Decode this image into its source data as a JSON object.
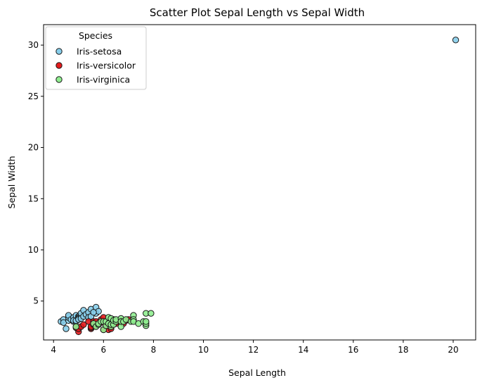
{
  "chart_data": {
    "type": "scatter",
    "title": "Scatter Plot Sepal Length vs Sepal Width",
    "xlabel": "Sepal Length",
    "ylabel": "Sepal Width",
    "xlim": [
      3.6,
      20.9
    ],
    "ylim": [
      1.2,
      32.0
    ],
    "xticks": [
      4,
      6,
      8,
      10,
      12,
      14,
      16,
      18,
      20
    ],
    "yticks": [
      5,
      10,
      15,
      20,
      25,
      30
    ],
    "grid": false,
    "legend": {
      "title": "Species",
      "placement": "top-left"
    },
    "series": [
      {
        "name": "Iris-setosa",
        "color": "#87ceeb",
        "points": [
          [
            4.3,
            3.0
          ],
          [
            4.4,
            3.2
          ],
          [
            4.4,
            2.9
          ],
          [
            4.5,
            2.3
          ],
          [
            4.6,
            3.1
          ],
          [
            4.6,
            3.4
          ],
          [
            4.6,
            3.6
          ],
          [
            4.7,
            3.2
          ],
          [
            4.8,
            3.0
          ],
          [
            4.8,
            3.4
          ],
          [
            4.8,
            3.1
          ],
          [
            4.9,
            3.0
          ],
          [
            4.9,
            3.1
          ],
          [
            4.9,
            3.6
          ],
          [
            5.0,
            3.5
          ],
          [
            5.0,
            3.4
          ],
          [
            5.0,
            3.3
          ],
          [
            5.0,
            3.2
          ],
          [
            5.1,
            3.5
          ],
          [
            5.1,
            3.8
          ],
          [
            5.1,
            3.3
          ],
          [
            5.2,
            3.5
          ],
          [
            5.2,
            4.1
          ],
          [
            5.3,
            3.7
          ],
          [
            5.4,
            3.9
          ],
          [
            5.4,
            3.4
          ],
          [
            5.5,
            4.2
          ],
          [
            5.5,
            3.5
          ],
          [
            5.7,
            4.4
          ],
          [
            5.7,
            3.8
          ],
          [
            5.8,
            4.0
          ],
          [
            5.6,
            3.9
          ],
          [
            20.1,
            30.5
          ]
        ]
      },
      {
        "name": "Iris-versicolor",
        "color": "#e41a1c",
        "points": [
          [
            4.9,
            2.4
          ],
          [
            5.0,
            2.0
          ],
          [
            5.0,
            2.3
          ],
          [
            5.1,
            2.5
          ],
          [
            5.2,
            2.7
          ],
          [
            5.4,
            3.0
          ],
          [
            5.5,
            2.3
          ],
          [
            5.5,
            2.4
          ],
          [
            5.5,
            2.5
          ],
          [
            5.6,
            2.9
          ],
          [
            5.6,
            3.0
          ],
          [
            5.6,
            2.7
          ],
          [
            5.7,
            2.8
          ],
          [
            5.7,
            2.6
          ],
          [
            5.7,
            3.0
          ],
          [
            5.8,
            2.7
          ],
          [
            5.9,
            3.0
          ],
          [
            5.9,
            3.2
          ],
          [
            6.0,
            2.2
          ],
          [
            6.0,
            2.9
          ],
          [
            6.0,
            3.4
          ],
          [
            6.1,
            2.8
          ],
          [
            6.1,
            3.0
          ],
          [
            6.2,
            2.2
          ],
          [
            6.2,
            2.9
          ],
          [
            6.3,
            2.3
          ],
          [
            6.3,
            2.5
          ],
          [
            6.4,
            3.2
          ],
          [
            6.5,
            2.8
          ],
          [
            6.6,
            3.0
          ],
          [
            6.7,
            3.1
          ],
          [
            6.8,
            2.8
          ],
          [
            6.9,
            3.1
          ],
          [
            7.0,
            3.2
          ]
        ]
      },
      {
        "name": "Iris-virginica",
        "color": "#90ee90",
        "points": [
          [
            4.9,
            2.5
          ],
          [
            5.6,
            2.8
          ],
          [
            5.7,
            2.5
          ],
          [
            5.8,
            2.7
          ],
          [
            5.8,
            2.8
          ],
          [
            5.9,
            3.0
          ],
          [
            6.0,
            2.2
          ],
          [
            6.0,
            3.0
          ],
          [
            6.1,
            2.6
          ],
          [
            6.1,
            3.0
          ],
          [
            6.2,
            2.8
          ],
          [
            6.2,
            3.4
          ],
          [
            6.3,
            2.5
          ],
          [
            6.3,
            2.7
          ],
          [
            6.3,
            3.3
          ],
          [
            6.4,
            2.7
          ],
          [
            6.4,
            3.1
          ],
          [
            6.5,
            3.0
          ],
          [
            6.5,
            3.2
          ],
          [
            6.7,
            2.5
          ],
          [
            6.7,
            3.3
          ],
          [
            6.7,
            3.0
          ],
          [
            6.8,
            3.0
          ],
          [
            6.9,
            3.2
          ],
          [
            7.1,
            3.0
          ],
          [
            7.2,
            3.6
          ],
          [
            7.2,
            3.2
          ],
          [
            7.2,
            3.0
          ],
          [
            7.4,
            2.8
          ],
          [
            7.6,
            3.0
          ],
          [
            7.7,
            2.6
          ],
          [
            7.7,
            2.8
          ],
          [
            7.7,
            3.0
          ],
          [
            7.7,
            3.8
          ],
          [
            7.9,
            3.8
          ]
        ]
      }
    ]
  }
}
